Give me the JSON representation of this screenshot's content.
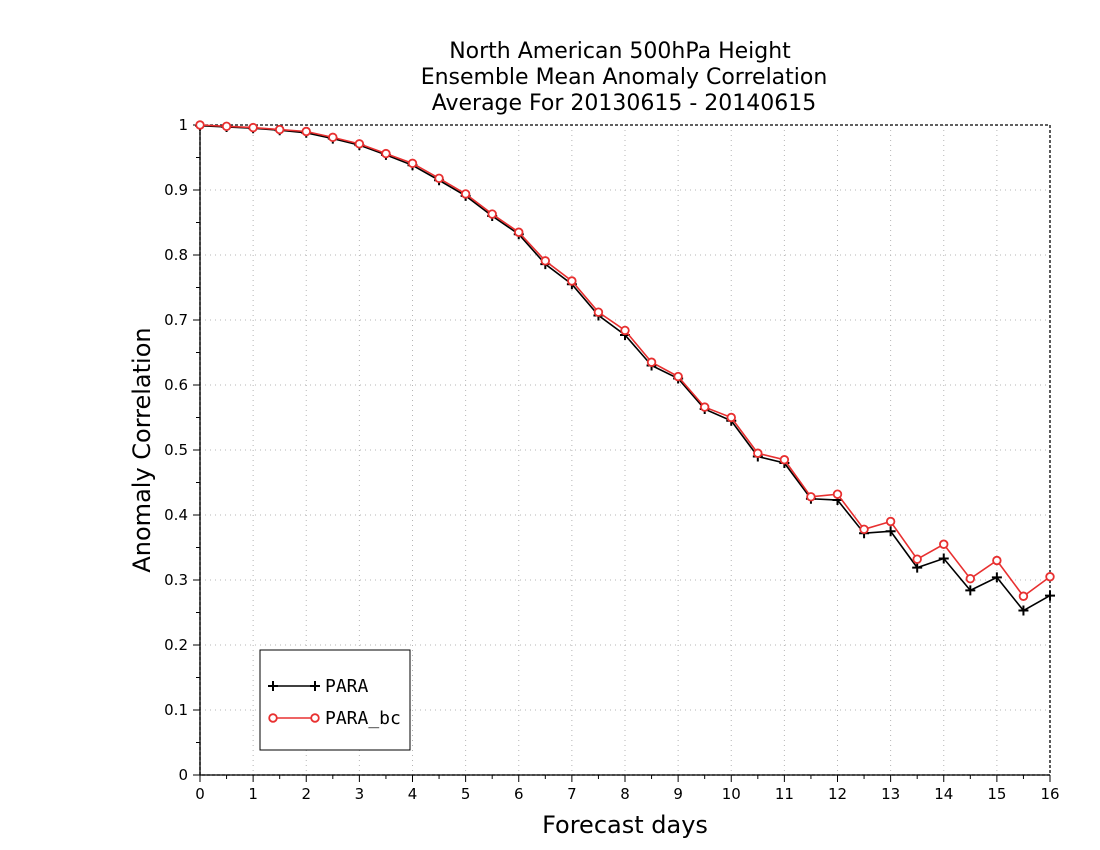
{
  "chart_data": {
    "type": "line",
    "title_lines": [
      "North American 500hPa Height",
      "Ensemble Mean Anomaly Correlation",
      "Average For 20130615 - 20140615"
    ],
    "xlabel": "Forecast days",
    "ylabel": "Anomaly Correlation",
    "xlim": [
      0,
      16
    ],
    "ylim": [
      0,
      1
    ],
    "x_ticks": [
      0,
      1,
      2,
      3,
      4,
      5,
      6,
      7,
      8,
      9,
      10,
      11,
      12,
      13,
      14,
      15,
      16
    ],
    "x_tick_labels": [
      "0",
      "1",
      "2",
      "3",
      "4",
      "5",
      "6",
      "7",
      "8",
      "9",
      "10",
      "11",
      "12",
      "13",
      "14",
      "15",
      "16"
    ],
    "y_ticks": [
      0,
      0.1,
      0.2,
      0.3,
      0.4,
      0.5,
      0.6,
      0.7,
      0.8,
      0.9,
      1
    ],
    "y_tick_labels": [
      "0",
      "0.1",
      "0.2",
      "0.3",
      "0.4",
      "0.5",
      "0.6",
      "0.7",
      "0.8",
      "0.9",
      "1"
    ],
    "grid": true,
    "legend_position": "bottom-left",
    "x": [
      0,
      0.5,
      1,
      1.5,
      2,
      2.5,
      3,
      3.5,
      4,
      4.5,
      5,
      5.5,
      6,
      6.5,
      7,
      7.5,
      8,
      8.5,
      9,
      9.5,
      10,
      10.5,
      11,
      11.5,
      12,
      12.5,
      13,
      13.5,
      14,
      14.5,
      15,
      15.5,
      16
    ],
    "series": [
      {
        "name": "PARA",
        "color": "#000000",
        "marker": "plus",
        "values": [
          0.999,
          0.997,
          0.995,
          0.992,
          0.988,
          0.979,
          0.969,
          0.954,
          0.938,
          0.915,
          0.891,
          0.86,
          0.832,
          0.786,
          0.755,
          0.707,
          0.677,
          0.63,
          0.61,
          0.563,
          0.545,
          0.49,
          0.48,
          0.425,
          0.423,
          0.372,
          0.375,
          0.319,
          0.333,
          0.284,
          0.304,
          0.253,
          0.276
        ]
      },
      {
        "name": "PARA_bc",
        "color": "#e83030",
        "marker": "circle",
        "values": [
          1.0,
          0.998,
          0.996,
          0.993,
          0.99,
          0.981,
          0.971,
          0.956,
          0.941,
          0.918,
          0.894,
          0.863,
          0.835,
          0.791,
          0.76,
          0.712,
          0.684,
          0.635,
          0.613,
          0.566,
          0.55,
          0.495,
          0.485,
          0.428,
          0.432,
          0.378,
          0.39,
          0.332,
          0.355,
          0.302,
          0.33,
          0.275,
          0.305
        ]
      }
    ]
  }
}
